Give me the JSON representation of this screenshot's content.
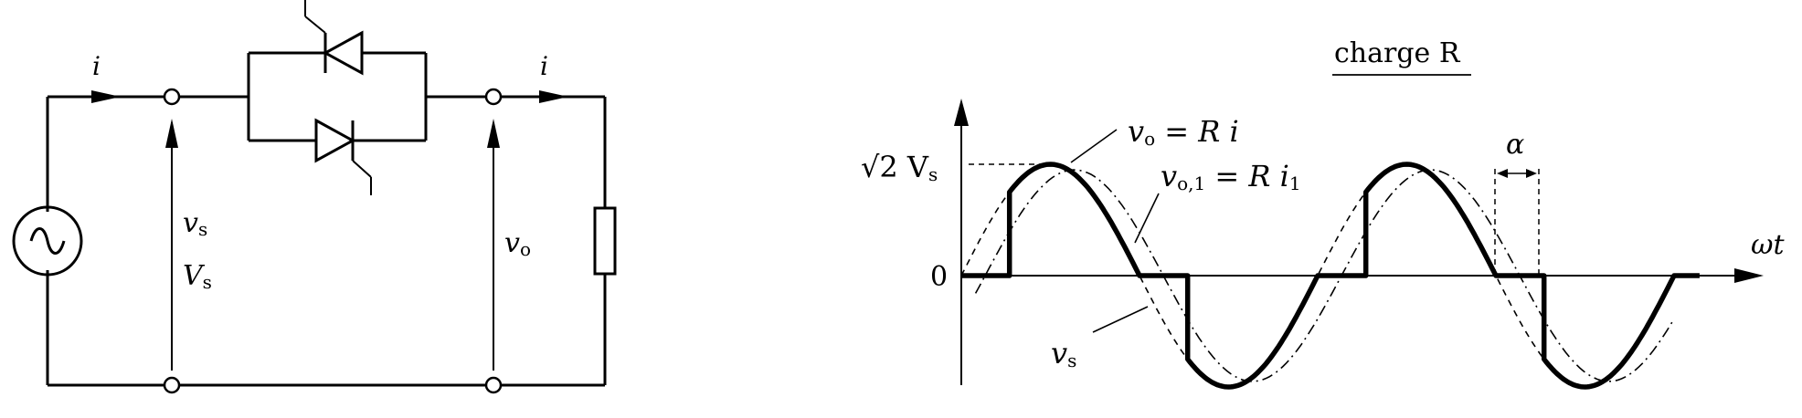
{
  "circuit": {
    "current_label_left": "i",
    "current_label_right": "i",
    "source_voltage_label": "v",
    "source_voltage_sub": "s",
    "source_rms_label": "V",
    "source_rms_sub": "s",
    "output_voltage_label": "v",
    "output_voltage_sub": "o"
  },
  "waveform": {
    "title": "charge R",
    "peak_label": "√2 V",
    "peak_sub": "s",
    "zero_label": "0",
    "axis_label": "ωt",
    "alpha_label": "α",
    "vo_eq": {
      "v": "v",
      "sub": "o",
      "rhs": " = R i"
    },
    "vo1_eq": {
      "v": "v",
      "sub": "o,1",
      "rhs": " = R i",
      "rhs_sub": "1"
    },
    "vs_label": {
      "v": "v",
      "sub": "s"
    },
    "curves": {
      "vs": "dashed sine",
      "vo1": "dash-dot fundamental",
      "vo": "thick chopped sine"
    }
  }
}
